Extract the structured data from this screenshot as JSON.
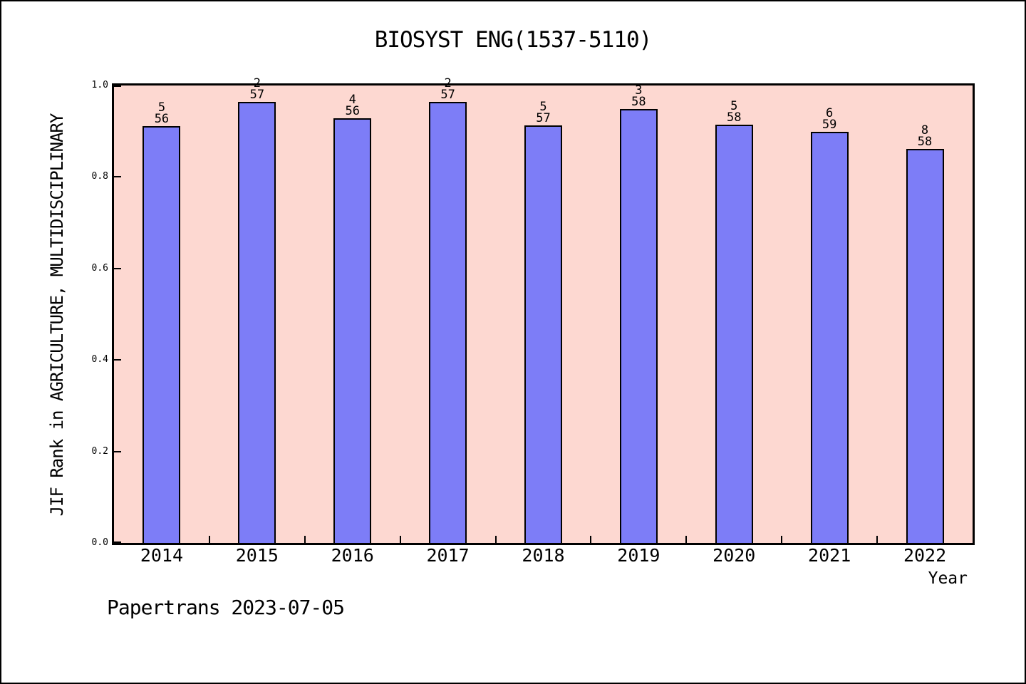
{
  "page": {
    "footer": "Papertrans 2023-07-05"
  },
  "chart_data": {
    "type": "bar",
    "title": "BIOSYST ENG(1537-5110)",
    "xlabel": "Year",
    "ylabel": "JIF Rank in AGRICULTURE, MULTIDISCIPLINARY",
    "ylim": [
      0.0,
      1.0
    ],
    "ytick_labels": [
      "0.0",
      "0.2",
      "0.4",
      "0.6",
      "0.8",
      "1.0"
    ],
    "grid": false,
    "legend": false,
    "categories": [
      "2014",
      "2015",
      "2016",
      "2017",
      "2018",
      "2019",
      "2020",
      "2021",
      "2022"
    ],
    "bars": [
      {
        "year": "2014",
        "rank": 5,
        "total": 56,
        "value": 0.9107
      },
      {
        "year": "2015",
        "rank": 2,
        "total": 57,
        "value": 0.9649
      },
      {
        "year": "2016",
        "rank": 4,
        "total": 56,
        "value": 0.9286
      },
      {
        "year": "2017",
        "rank": 2,
        "total": 57,
        "value": 0.9649
      },
      {
        "year": "2018",
        "rank": 5,
        "total": 57,
        "value": 0.9123
      },
      {
        "year": "2019",
        "rank": 3,
        "total": 58,
        "value": 0.9483
      },
      {
        "year": "2020",
        "rank": 5,
        "total": 58,
        "value": 0.9138
      },
      {
        "year": "2021",
        "rank": 6,
        "total": 59,
        "value": 0.8983
      },
      {
        "year": "2022",
        "rank": 8,
        "total": 58,
        "value": 0.8621
      }
    ],
    "colors": {
      "bar_fill": "#7d7df7",
      "bar_border": "#000000",
      "plot_background": "#fdd8d1",
      "page_background": "#ffffff",
      "axis_color": "#000000"
    }
  }
}
